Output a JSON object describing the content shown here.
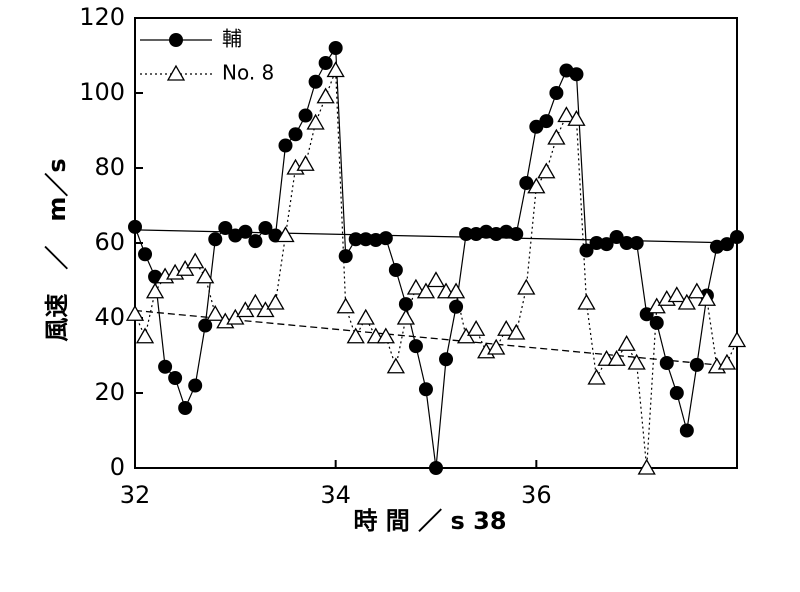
{
  "chart_data": {
    "type": "line",
    "xlabel": "時 間 ／ s 38",
    "ylabel": "風速　／　m／s",
    "xlim": [
      32,
      38
    ],
    "xticks": [
      32,
      34,
      36
    ],
    "ylim": [
      0,
      120
    ],
    "yticks": [
      0,
      20,
      40,
      60,
      80,
      100,
      120
    ],
    "legend": "upper left",
    "x": [
      32.0,
      32.1,
      32.2,
      32.3,
      32.4,
      32.5,
      32.6,
      32.7,
      32.8,
      32.9,
      33.0,
      33.1,
      33.2,
      33.3,
      33.4,
      33.5,
      33.6,
      33.7,
      33.8,
      33.9,
      34.0,
      34.1,
      34.2,
      34.3,
      34.4,
      34.5,
      34.6,
      34.7,
      34.8,
      34.9,
      35.0,
      35.1,
      35.2,
      35.3,
      35.4,
      35.5,
      35.6,
      35.7,
      35.8,
      35.9,
      36.0,
      36.1,
      36.2,
      36.3,
      36.4,
      36.5,
      36.6,
      36.7,
      36.8,
      36.9,
      37.0,
      37.1,
      37.2,
      37.3,
      37.4,
      37.5,
      37.6,
      37.7,
      37.8,
      37.9,
      38.0
    ],
    "series": [
      {
        "name": "輔",
        "color": "#000000",
        "marker": "circle",
        "line": "solid",
        "values": [
          64.3,
          57,
          51,
          27,
          24,
          16,
          22,
          38,
          61,
          64,
          62,
          63,
          60.5,
          64,
          62,
          86,
          89,
          94,
          103,
          108,
          112,
          56.5,
          61,
          61,
          60.8,
          61.3,
          52.8,
          43.7,
          32.5,
          21,
          0,
          29,
          43,
          62.4,
          62.4,
          63,
          62.4,
          63,
          62.4,
          76,
          91,
          92.5,
          100,
          106,
          105,
          58,
          60,
          59.7,
          61.6,
          60,
          60,
          41,
          38.7,
          28,
          20,
          10,
          27.5,
          46,
          59,
          59.7,
          61.6
        ]
      },
      {
        "name": "No. 8",
        "color": "#000000",
        "marker": "triangle",
        "line": "dotted",
        "values": [
          41,
          35,
          47,
          51,
          52,
          53,
          55,
          51,
          41,
          39,
          40,
          42,
          44,
          42,
          44,
          62,
          80,
          81,
          92,
          99,
          106,
          43,
          35,
          40,
          35,
          35,
          27,
          40,
          48,
          47,
          50,
          47,
          47,
          35,
          37,
          31,
          32,
          37,
          36,
          48,
          75,
          79,
          88,
          94,
          93,
          44,
          24,
          29,
          29,
          33,
          28,
          0,
          43,
          45,
          46,
          44,
          47,
          45,
          27,
          28,
          34
        ]
      }
    ],
    "trend_lines": [
      {
        "x": [
          32,
          38
        ],
        "values": [
          63.5,
          60
        ],
        "line": "solid"
      },
      {
        "x": [
          32,
          38
        ],
        "values": [
          42,
          27
        ],
        "line": "dashed"
      }
    ]
  }
}
